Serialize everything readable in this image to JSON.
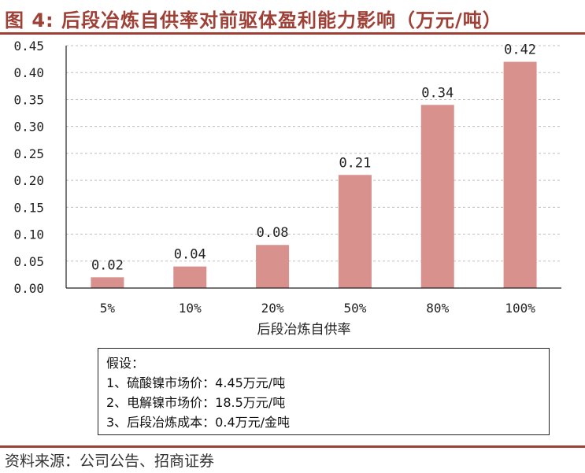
{
  "header": {
    "title": "图 4: 后段冶炼自供率对前驱体盈利能力影响（万元/吨）"
  },
  "chart_data": {
    "type": "bar",
    "categories": [
      "5%",
      "10%",
      "20%",
      "50%",
      "80%",
      "100%"
    ],
    "values": [
      0.02,
      0.04,
      0.08,
      0.21,
      0.34,
      0.42
    ],
    "data_labels": [
      "0.02",
      "0.04",
      "0.08",
      "0.21",
      "0.34",
      "0.42"
    ],
    "y_ticks": [
      "0.00",
      "0.05",
      "0.10",
      "0.15",
      "0.20",
      "0.25",
      "0.30",
      "0.35",
      "0.40",
      "0.45"
    ],
    "ylim": [
      0,
      0.45
    ],
    "xlabel": "后段冶炼自供率",
    "ylabel": "",
    "grid": true,
    "bar_color": "#d9918e"
  },
  "assumptions": {
    "heading": "假设：",
    "lines": [
      "1、硫酸镍市场价：4.45万元/吨",
      "2、电解镍市场价：18.5万元/吨",
      "3、后段冶炼成本：0.4万元/金吨"
    ]
  },
  "footer": {
    "source": "资料来源：公司公告、招商证券"
  },
  "colors": {
    "accent": "#9f4036",
    "bar": "#d9918e",
    "grid": "#bfbfbf"
  }
}
